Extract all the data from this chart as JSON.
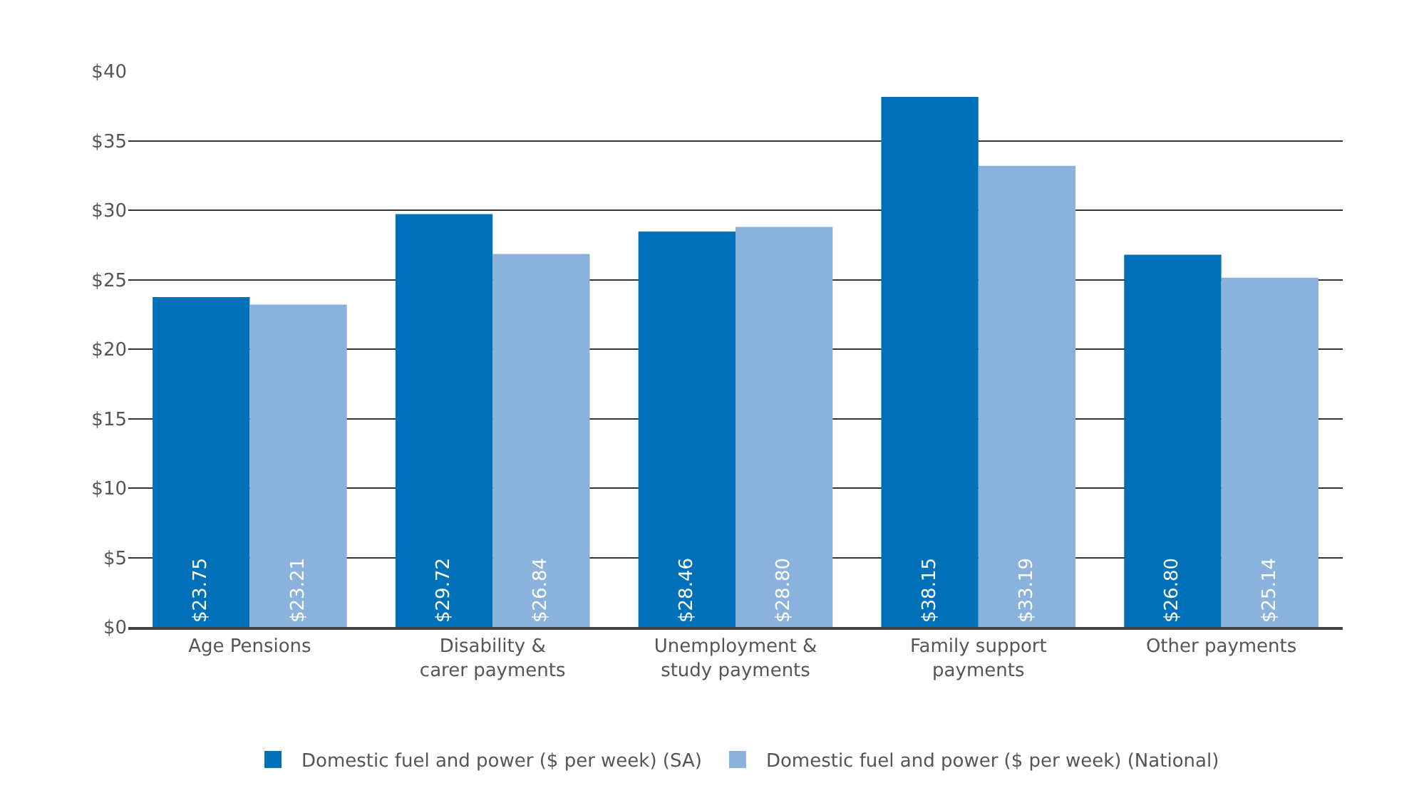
{
  "chart_data": {
    "type": "bar",
    "categories": [
      "Age Pensions",
      "Disability &\ncarer payments",
      "Unemployment &\nstudy payments",
      "Family support\npayments",
      "Other payments"
    ],
    "series": [
      {
        "name": "Domestic fuel and power ($ per week) (SA)",
        "color": "#0070b8",
        "values": [
          23.75,
          29.72,
          28.46,
          38.15,
          26.8
        ],
        "value_labels": [
          "$23.75",
          "$29.72",
          "$28.46",
          "$38.15",
          "$26.80"
        ]
      },
      {
        "name": "Domestic fuel and power ($ per week) (National)",
        "color": "#8ab2dc",
        "values": [
          23.21,
          26.84,
          28.8,
          33.19,
          25.14
        ],
        "value_labels": [
          "$23.21",
          "$26.84",
          "$28.80",
          "$33.19",
          "$25.14"
        ]
      }
    ],
    "ylim": [
      0,
      40
    ],
    "yticks": [
      {
        "value": 0,
        "label": "$0"
      },
      {
        "value": 5,
        "label": "$5"
      },
      {
        "value": 10,
        "label": "$10"
      },
      {
        "value": 15,
        "label": "$15"
      },
      {
        "value": 20,
        "label": "$20"
      },
      {
        "value": 25,
        "label": "$25"
      },
      {
        "value": 30,
        "label": "$30"
      },
      {
        "value": 35,
        "label": "$35"
      },
      {
        "value": 40,
        "label": "$40"
      }
    ],
    "grid": "y",
    "legend": "bottom"
  }
}
